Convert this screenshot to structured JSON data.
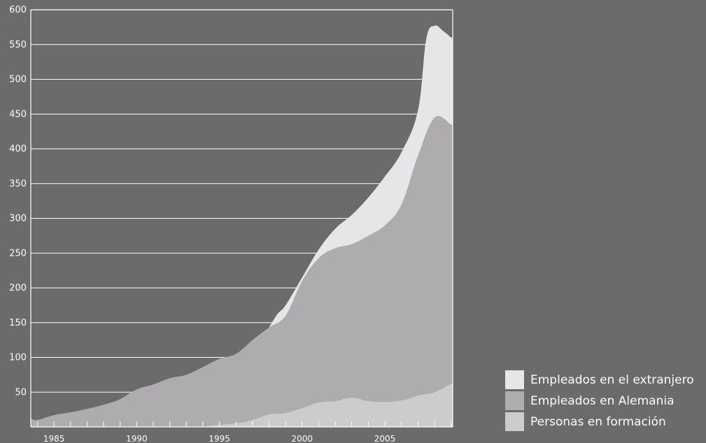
{
  "chart_data": {
    "type": "area",
    "title": "",
    "xlabel": "",
    "ylabel": "",
    "stacked": true,
    "xlim": [
      1983.6,
      2009.1
    ],
    "ylim": [
      0,
      600
    ],
    "yticks": [
      50,
      100,
      150,
      200,
      250,
      300,
      350,
      400,
      450,
      500,
      550,
      600
    ],
    "xticks": [
      1985,
      1990,
      1995,
      2000,
      2005
    ],
    "grid": true,
    "legend_position": "bottom-right",
    "colors": {
      "background": "#6b6b6b",
      "foreign": "#e6e6e8",
      "germany": "#aeacaf",
      "trainees": "#cdcbcc",
      "grid": "#ffffff"
    },
    "series": [
      {
        "name": "Personas en formación",
        "color": "#cdcbcc",
        "points": [
          [
            1994,
            0
          ],
          [
            1995,
            3
          ],
          [
            1996,
            5
          ],
          [
            1997,
            10
          ],
          [
            1998,
            18
          ],
          [
            1999,
            20
          ],
          [
            2000,
            27
          ],
          [
            2001,
            35
          ],
          [
            2002,
            37
          ],
          [
            2003,
            42
          ],
          [
            2004,
            37
          ],
          [
            2005,
            36
          ],
          [
            2006,
            38
          ],
          [
            2007,
            45
          ],
          [
            2008,
            50
          ],
          [
            2009,
            62
          ]
        ]
      },
      {
        "name": "Empleados en Alemania",
        "color": "#aeacaf",
        "points": [
          [
            1983.6,
            12
          ],
          [
            1984,
            10
          ],
          [
            1985,
            17
          ],
          [
            1986,
            21
          ],
          [
            1987,
            26
          ],
          [
            1988,
            32
          ],
          [
            1989,
            40
          ],
          [
            1990,
            54
          ],
          [
            1991,
            61
          ],
          [
            1992,
            70
          ],
          [
            1993,
            75
          ],
          [
            1994,
            86
          ],
          [
            1995,
            98
          ],
          [
            1996,
            105
          ],
          [
            1997,
            125
          ],
          [
            1998,
            143
          ],
          [
            1999,
            160
          ],
          [
            2000,
            210
          ],
          [
            2001,
            243
          ],
          [
            2002,
            257
          ],
          [
            2003,
            263
          ],
          [
            2004,
            275
          ],
          [
            2005,
            290
          ],
          [
            2006,
            320
          ],
          [
            2007,
            390
          ],
          [
            2008,
            445
          ],
          [
            2009,
            435
          ]
        ]
      },
      {
        "name": "Empleados en el extranjero",
        "color": "#e6e6e8",
        "points": [
          [
            1998,
            143
          ],
          [
            1998.5,
            162
          ],
          [
            1999,
            175
          ],
          [
            2000,
            215
          ],
          [
            2001,
            255
          ],
          [
            2002,
            285
          ],
          [
            2003,
            305
          ],
          [
            2004,
            330
          ],
          [
            2005,
            360
          ],
          [
            2006,
            395
          ],
          [
            2007,
            455
          ],
          [
            2007.5,
            558
          ],
          [
            2008,
            577
          ],
          [
            2008.5,
            570
          ],
          [
            2009,
            560
          ]
        ]
      }
    ]
  },
  "legend": {
    "items": [
      {
        "label": "Empleados en el extranjero",
        "color": "#e6e6e8"
      },
      {
        "label": "Empleados en Alemania",
        "color": "#aeacaf"
      },
      {
        "label": "Personas en formación",
        "color": "#cdcbcc"
      }
    ]
  }
}
